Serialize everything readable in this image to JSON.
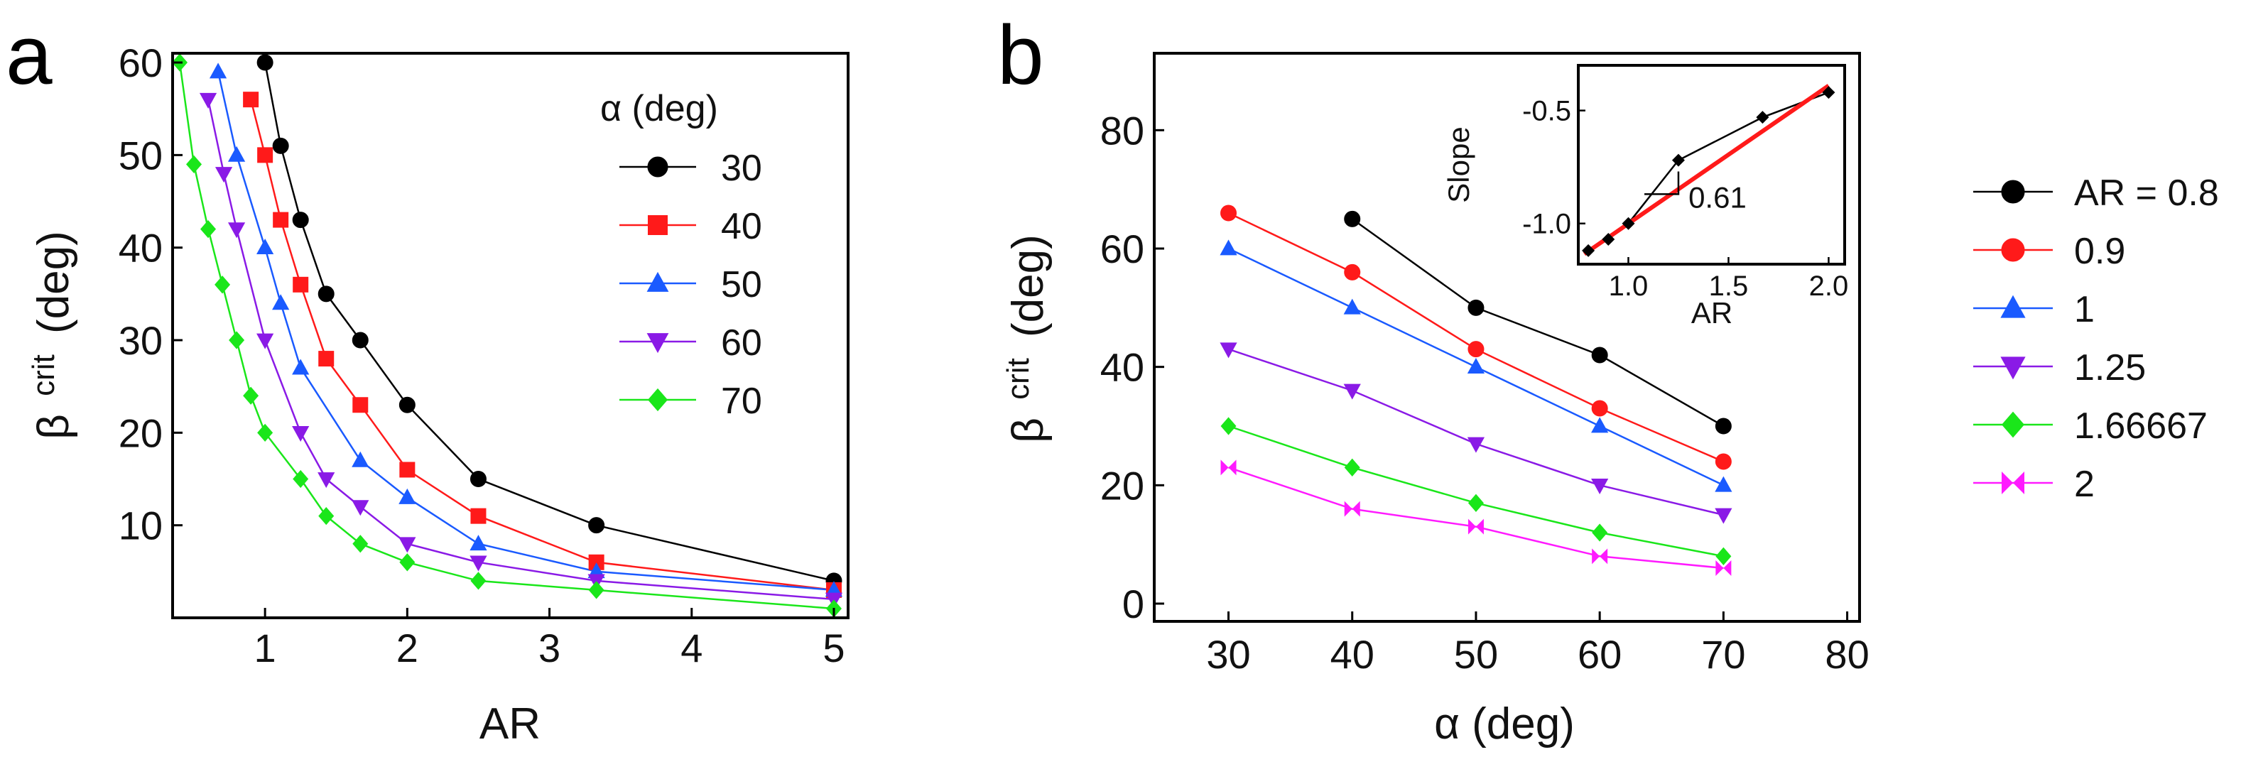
{
  "chart_data": [
    {
      "panel": "a",
      "type": "line",
      "xlabel": "AR",
      "ylabel": "β",
      "ylabel_sub": "crit",
      "ylabel_unit": "(deg)",
      "xlim": [
        0.35,
        5.1
      ],
      "ylim": [
        0,
        61
      ],
      "xticks": [
        1,
        2,
        3,
        4,
        5
      ],
      "yticks": [
        10,
        20,
        30,
        40,
        50,
        60
      ],
      "legend_title": "α (deg)",
      "series": [
        {
          "name": "30",
          "color": "#000000",
          "marker": "circle",
          "x": [
            1.0,
            1.11,
            1.25,
            1.43,
            1.67,
            2.0,
            2.5,
            3.33,
            5.0
          ],
          "y": [
            60,
            51,
            43,
            35,
            30,
            23,
            15,
            10,
            4
          ]
        },
        {
          "name": "40",
          "color": "#ff1a1a",
          "marker": "square",
          "x": [
            0.9,
            1.0,
            1.11,
            1.25,
            1.43,
            1.67,
            2.0,
            2.5,
            3.33,
            5.0
          ],
          "y": [
            56,
            50,
            43,
            36,
            28,
            23,
            16,
            11,
            6,
            3
          ]
        },
        {
          "name": "50",
          "color": "#1a5aff",
          "marker": "triangle-up",
          "x": [
            0.67,
            0.8,
            1.0,
            1.11,
            1.25,
            1.67,
            2.0,
            2.5,
            3.33,
            5.0
          ],
          "y": [
            59,
            50,
            40,
            34,
            27,
            17,
            13,
            8,
            5,
            3
          ]
        },
        {
          "name": "60",
          "color": "#8a1ae6",
          "marker": "triangle-down",
          "x": [
            0.6,
            0.71,
            0.8,
            1.0,
            1.25,
            1.43,
            1.67,
            2.0,
            2.5,
            3.33,
            5.0
          ],
          "y": [
            56,
            48,
            42,
            30,
            20,
            15,
            12,
            8,
            6,
            4,
            2
          ]
        },
        {
          "name": "70",
          "color": "#1ae61a",
          "marker": "diamond",
          "x": [
            0.4,
            0.5,
            0.6,
            0.7,
            0.8,
            0.9,
            1.0,
            1.25,
            1.43,
            1.67,
            2.0,
            2.5,
            3.33,
            5.0
          ],
          "y": [
            60,
            49,
            42,
            36,
            30,
            24,
            20,
            15,
            11,
            8,
            6,
            4,
            3,
            1
          ]
        }
      ]
    },
    {
      "panel": "b",
      "type": "line",
      "xlabel": "α (deg)",
      "ylabel": "β",
      "ylabel_sub": "crit",
      "ylabel_unit": "(deg)",
      "xlim": [
        24,
        81
      ],
      "ylim": [
        -3,
        93
      ],
      "xticks": [
        30,
        40,
        50,
        60,
        70,
        80
      ],
      "yticks": [
        0,
        20,
        40,
        60,
        80
      ],
      "series": [
        {
          "name": "AR = 0.8",
          "color": "#000000",
          "marker": "circle",
          "x": [
            40,
            50,
            60,
            70
          ],
          "y": [
            65,
            50,
            42,
            30
          ]
        },
        {
          "name": "0.9",
          "color": "#ff1a1a",
          "marker": "circle",
          "x": [
            30,
            40,
            50,
            60,
            70
          ],
          "y": [
            66,
            56,
            43,
            33,
            24
          ]
        },
        {
          "name": "1",
          "color": "#1a5aff",
          "marker": "triangle-up",
          "x": [
            30,
            40,
            50,
            60,
            70
          ],
          "y": [
            60,
            50,
            40,
            30,
            20
          ]
        },
        {
          "name": "1.25",
          "color": "#8a1ae6",
          "marker": "triangle-down",
          "x": [
            30,
            40,
            50,
            60,
            70
          ],
          "y": [
            43,
            36,
            27,
            20,
            15
          ]
        },
        {
          "name": "1.66667",
          "color": "#1ae61a",
          "marker": "diamond",
          "x": [
            30,
            40,
            50,
            60,
            70
          ],
          "y": [
            30,
            23,
            17,
            12,
            8
          ]
        },
        {
          "name": "2",
          "color": "#ff1aff",
          "marker": "bowtie",
          "x": [
            30,
            40,
            50,
            60,
            70
          ],
          "y": [
            23,
            16,
            13,
            8,
            6
          ]
        }
      ],
      "inset": {
        "type": "scatter",
        "xlabel": "AR",
        "ylabel": "Slope",
        "xlim": [
          0.75,
          2.08
        ],
        "ylim": [
          -1.18,
          -0.3
        ],
        "xticks": [
          "1.0",
          "1.5",
          "2.0"
        ],
        "yticks": [
          "-0.5",
          "-1.0"
        ],
        "points": {
          "x": [
            0.8,
            0.9,
            1.0,
            1.25,
            1.67,
            2.0
          ],
          "y": [
            -1.12,
            -1.07,
            -1.0,
            -0.72,
            -0.53,
            -0.42
          ]
        },
        "fit": {
          "color": "#ff1a1a",
          "slope": 0.61,
          "x": [
            0.78,
            2.0
          ],
          "y": [
            -1.135,
            -0.39
          ]
        },
        "annotation": "0.61"
      }
    }
  ]
}
